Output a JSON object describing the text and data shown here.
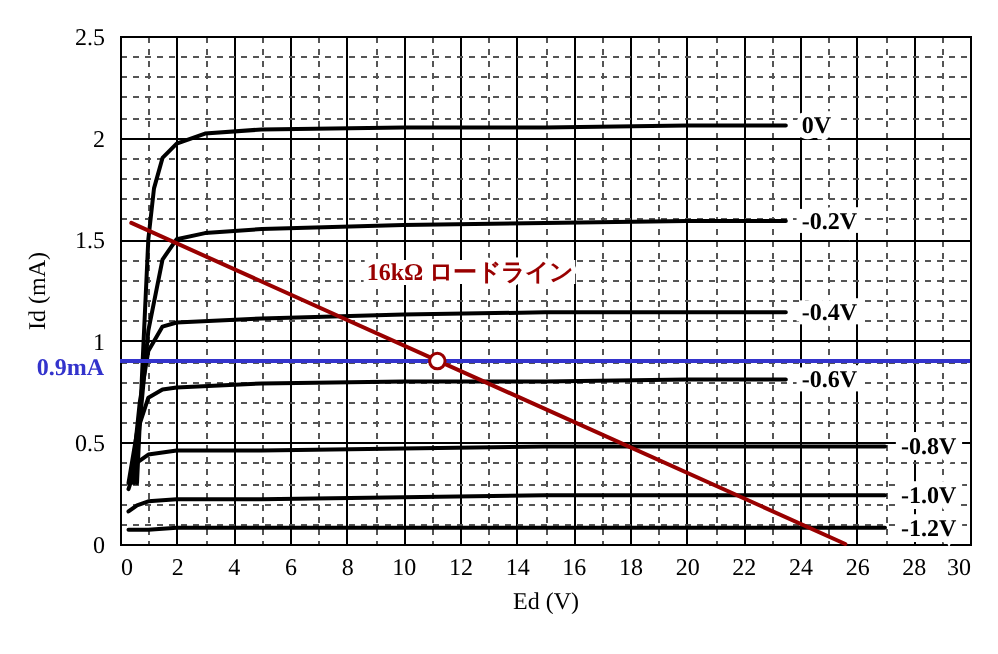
{
  "chart_data": {
    "type": "line",
    "xlabel": "Ed (V)",
    "ylabel": "Id (mA)",
    "xlim": [
      0,
      30
    ],
    "ylim": [
      0,
      2.5
    ],
    "xticks": [
      0,
      2,
      4,
      6,
      8,
      10,
      12,
      14,
      16,
      18,
      20,
      22,
      24,
      26,
      28,
      30
    ],
    "yticks": [
      0,
      0.5,
      1,
      1.5,
      2,
      2.5
    ],
    "grid": true,
    "line_style": "solid",
    "series": [
      {
        "name": "0V",
        "color": "#000000",
        "x": [
          0.6,
          0.8,
          1.0,
          1.2,
          1.5,
          2,
          3,
          5,
          10,
          15,
          20,
          23.5
        ],
        "values": [
          0.3,
          0.9,
          1.5,
          1.75,
          1.9,
          1.97,
          2.02,
          2.04,
          2.05,
          2.05,
          2.06,
          2.06
        ]
      },
      {
        "name": "-0.2V",
        "color": "#000000",
        "x": [
          0.5,
          0.8,
          1.0,
          1.5,
          2,
          3,
          5,
          10,
          15,
          20,
          23.5
        ],
        "values": [
          0.3,
          0.75,
          1.05,
          1.4,
          1.5,
          1.53,
          1.55,
          1.57,
          1.58,
          1.59,
          1.59
        ]
      },
      {
        "name": "-0.4V",
        "color": "#000000",
        "x": [
          0.4,
          0.7,
          1.0,
          1.5,
          2,
          5,
          10,
          15,
          20,
          23.5
        ],
        "values": [
          0.3,
          0.7,
          0.95,
          1.07,
          1.09,
          1.11,
          1.13,
          1.14,
          1.14,
          1.14
        ]
      },
      {
        "name": "-0.6V",
        "color": "#000000",
        "x": [
          0.3,
          0.6,
          1.0,
          1.5,
          2,
          5,
          10,
          15,
          20,
          23.5
        ],
        "values": [
          0.3,
          0.55,
          0.72,
          0.76,
          0.77,
          0.79,
          0.8,
          0.8,
          0.81,
          0.81
        ]
      },
      {
        "name": "-0.8V",
        "color": "#000000",
        "x": [
          0.3,
          0.6,
          1.0,
          2,
          5,
          10,
          15,
          20,
          27
        ],
        "values": [
          0.27,
          0.4,
          0.44,
          0.46,
          0.46,
          0.47,
          0.48,
          0.48,
          0.48
        ]
      },
      {
        "name": "-1.0V",
        "color": "#000000",
        "x": [
          0.3,
          0.6,
          1.0,
          2,
          5,
          10,
          15,
          20,
          27
        ],
        "values": [
          0.16,
          0.19,
          0.21,
          0.22,
          0.22,
          0.23,
          0.24,
          0.24,
          0.24
        ]
      },
      {
        "name": "-1.2V",
        "color": "#000000",
        "x": [
          0.3,
          1.0,
          2,
          5,
          10,
          15,
          20,
          27
        ],
        "values": [
          0.07,
          0.07,
          0.08,
          0.08,
          0.08,
          0.08,
          0.08,
          0.08
        ]
      },
      {
        "color": "#990000",
        "x": [
          0.4,
          25.6
        ],
        "values": [
          1.58,
          0
        ]
      },
      {
        "type": "scatter",
        "color": "#990000",
        "marker": "circle",
        "x": [
          11.2
        ],
        "values": [
          0.9
        ]
      }
    ],
    "ref_lines": [
      {
        "axis": "y",
        "value": 0.9,
        "label": "0.9mA",
        "color": "#3333cc"
      }
    ],
    "annotations": [
      "16kΩ ロードライン"
    ]
  }
}
